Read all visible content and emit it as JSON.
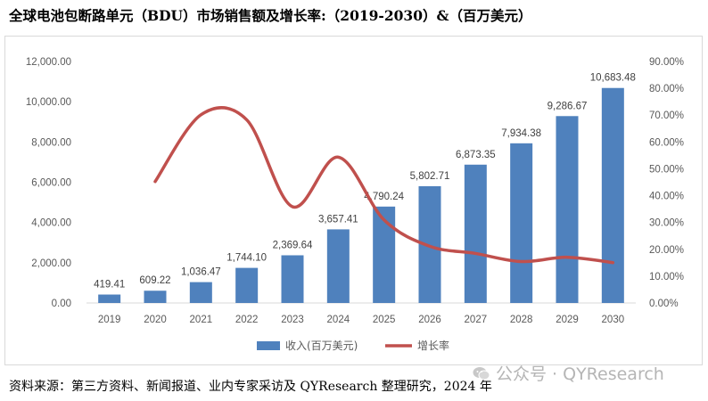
{
  "title": "全球电池包断路单元（BDU）市场销售额及增长率:（2019-2030）&（百万美元）",
  "source": "资料来源：第三方资料、新闻报道、业内专家采访及 QYResearch 整理研究，2024 年",
  "watermark": "公众号 · QYResearch",
  "colors": {
    "bar": "#4f81bd",
    "line": "#c0504d",
    "axis_text": "#595959",
    "grid": "#d9d9d9"
  },
  "chart_data": {
    "type": "bar",
    "categories": [
      "2019",
      "2020",
      "2021",
      "2022",
      "2023",
      "2024",
      "2025",
      "2026",
      "2027",
      "2028",
      "2029",
      "2030"
    ],
    "series": [
      {
        "name": "收入(百万美元)",
        "type": "bar",
        "axis": "left",
        "values": [
          419.41,
          609.22,
          1036.47,
          1744.1,
          2369.64,
          3657.41,
          4790.24,
          5802.71,
          6873.35,
          7934.38,
          9286.67,
          10683.48
        ],
        "labels": [
          "419.41",
          "609.22",
          "1,036.47",
          "1,744.10",
          "2,369.64",
          "3,657.41",
          "4,790.24",
          "5,802.71",
          "6,873.35",
          "7,934.38",
          "9,286.67",
          "10,683.48"
        ]
      },
      {
        "name": "增长率",
        "type": "line",
        "axis": "right",
        "values": [
          null,
          45.26,
          70.13,
          68.27,
          35.87,
          54.34,
          30.97,
          21.14,
          18.45,
          15.44,
          17.04,
          15.04
        ]
      }
    ],
    "y_left": {
      "min": 0,
      "max": 12000,
      "ticks": [
        "0.00",
        "2,000.00",
        "4,000.00",
        "6,000.00",
        "8,000.00",
        "10,000.00",
        "12,000.00"
      ]
    },
    "y_right": {
      "min": 0,
      "max": 90,
      "ticks": [
        "0.00%",
        "10.00%",
        "20.00%",
        "30.00%",
        "40.00%",
        "50.00%",
        "60.00%",
        "70.00%",
        "80.00%",
        "90.00%"
      ]
    },
    "legend": {
      "position": "bottom",
      "items": [
        "收入(百万美元)",
        "增长率"
      ]
    },
    "grid": false
  }
}
